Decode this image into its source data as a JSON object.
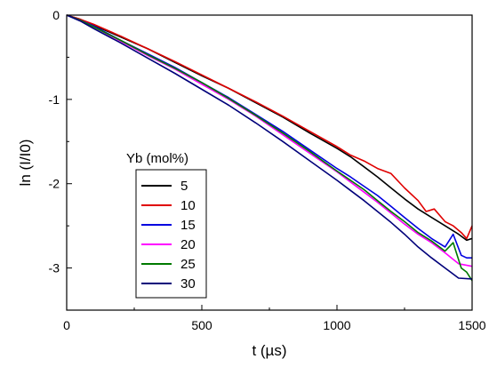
{
  "chart_data": {
    "type": "line",
    "title": "",
    "xlabel": "t (µs)",
    "ylabel": "ln (I/I0)",
    "xlim": [
      0,
      1500
    ],
    "ylim": [
      -3.5,
      0
    ],
    "x_ticks": [
      0,
      500,
      1000,
      1500
    ],
    "y_ticks": [
      0,
      -1,
      -2,
      -3
    ],
    "x_tick_labels": [
      "0",
      "500",
      "1000",
      "1500"
    ],
    "y_tick_labels": [
      "0",
      "-1",
      "-2",
      "-3"
    ],
    "grid": false,
    "legend": {
      "title": "Yb (mol%)",
      "placement": "center-left"
    },
    "series": [
      {
        "name": "5",
        "color": "#000000",
        "x": [
          0,
          50,
          100,
          200,
          300,
          400,
          500,
          600,
          700,
          800,
          900,
          1000,
          1050,
          1100,
          1150,
          1200,
          1250,
          1300,
          1350,
          1400,
          1450,
          1480,
          1500
        ],
        "y": [
          0,
          -0.05,
          -0.12,
          -0.26,
          -0.4,
          -0.56,
          -0.72,
          -0.87,
          -1.04,
          -1.21,
          -1.4,
          -1.58,
          -1.68,
          -1.8,
          -1.92,
          -2.05,
          -2.18,
          -2.3,
          -2.4,
          -2.5,
          -2.6,
          -2.67,
          -2.65
        ]
      },
      {
        "name": "10",
        "color": "#e00000",
        "x": [
          0,
          50,
          100,
          200,
          300,
          400,
          500,
          600,
          700,
          800,
          900,
          1000,
          1050,
          1100,
          1150,
          1200,
          1250,
          1300,
          1330,
          1360,
          1400,
          1430,
          1460,
          1480,
          1500
        ],
        "y": [
          0,
          -0.05,
          -0.11,
          -0.25,
          -0.4,
          -0.55,
          -0.71,
          -0.87,
          -1.03,
          -1.2,
          -1.38,
          -1.56,
          -1.66,
          -1.73,
          -1.82,
          -1.88,
          -2.05,
          -2.2,
          -2.33,
          -2.3,
          -2.45,
          -2.5,
          -2.58,
          -2.65,
          -2.5
        ]
      },
      {
        "name": "15",
        "color": "#0000e0",
        "x": [
          0,
          50,
          100,
          200,
          300,
          400,
          500,
          600,
          700,
          800,
          900,
          1000,
          1050,
          1100,
          1150,
          1200,
          1250,
          1300,
          1350,
          1400,
          1430,
          1460,
          1480,
          1500
        ],
        "y": [
          0,
          -0.06,
          -0.13,
          -0.3,
          -0.46,
          -0.62,
          -0.8,
          -0.98,
          -1.18,
          -1.38,
          -1.6,
          -1.82,
          -1.92,
          -2.03,
          -2.14,
          -2.27,
          -2.4,
          -2.53,
          -2.65,
          -2.75,
          -2.6,
          -2.85,
          -2.88,
          -2.88
        ]
      },
      {
        "name": "20",
        "color": "#ff00ff",
        "x": [
          0,
          50,
          100,
          200,
          300,
          400,
          500,
          600,
          700,
          800,
          900,
          1000,
          1050,
          1100,
          1150,
          1200,
          1250,
          1300,
          1350,
          1400,
          1450,
          1500
        ],
        "y": [
          0,
          -0.06,
          -0.14,
          -0.31,
          -0.48,
          -0.64,
          -0.82,
          -1.0,
          -1.2,
          -1.42,
          -1.64,
          -1.86,
          -1.98,
          -2.1,
          -2.22,
          -2.35,
          -2.48,
          -2.6,
          -2.7,
          -2.82,
          -2.95,
          -2.98
        ]
      },
      {
        "name": "25",
        "color": "#007a00",
        "x": [
          0,
          50,
          100,
          200,
          300,
          400,
          500,
          600,
          700,
          800,
          900,
          1000,
          1050,
          1100,
          1150,
          1200,
          1250,
          1300,
          1350,
          1400,
          1430,
          1460,
          1480,
          1500
        ],
        "y": [
          0,
          -0.06,
          -0.14,
          -0.3,
          -0.47,
          -0.63,
          -0.8,
          -0.99,
          -1.19,
          -1.4,
          -1.62,
          -1.85,
          -1.96,
          -2.07,
          -2.2,
          -2.33,
          -2.45,
          -2.58,
          -2.68,
          -2.8,
          -2.7,
          -3.0,
          -3.05,
          -3.15
        ]
      },
      {
        "name": "30",
        "color": "#00007a",
        "x": [
          0,
          50,
          100,
          200,
          300,
          400,
          500,
          600,
          700,
          800,
          900,
          1000,
          1050,
          1100,
          1150,
          1200,
          1250,
          1300,
          1350,
          1400,
          1450,
          1500
        ],
        "y": [
          0,
          -0.07,
          -0.16,
          -0.33,
          -0.51,
          -0.69,
          -0.88,
          -1.07,
          -1.28,
          -1.5,
          -1.73,
          -1.96,
          -2.08,
          -2.2,
          -2.33,
          -2.46,
          -2.6,
          -2.75,
          -2.88,
          -3.0,
          -3.12,
          -3.13
        ]
      }
    ]
  }
}
